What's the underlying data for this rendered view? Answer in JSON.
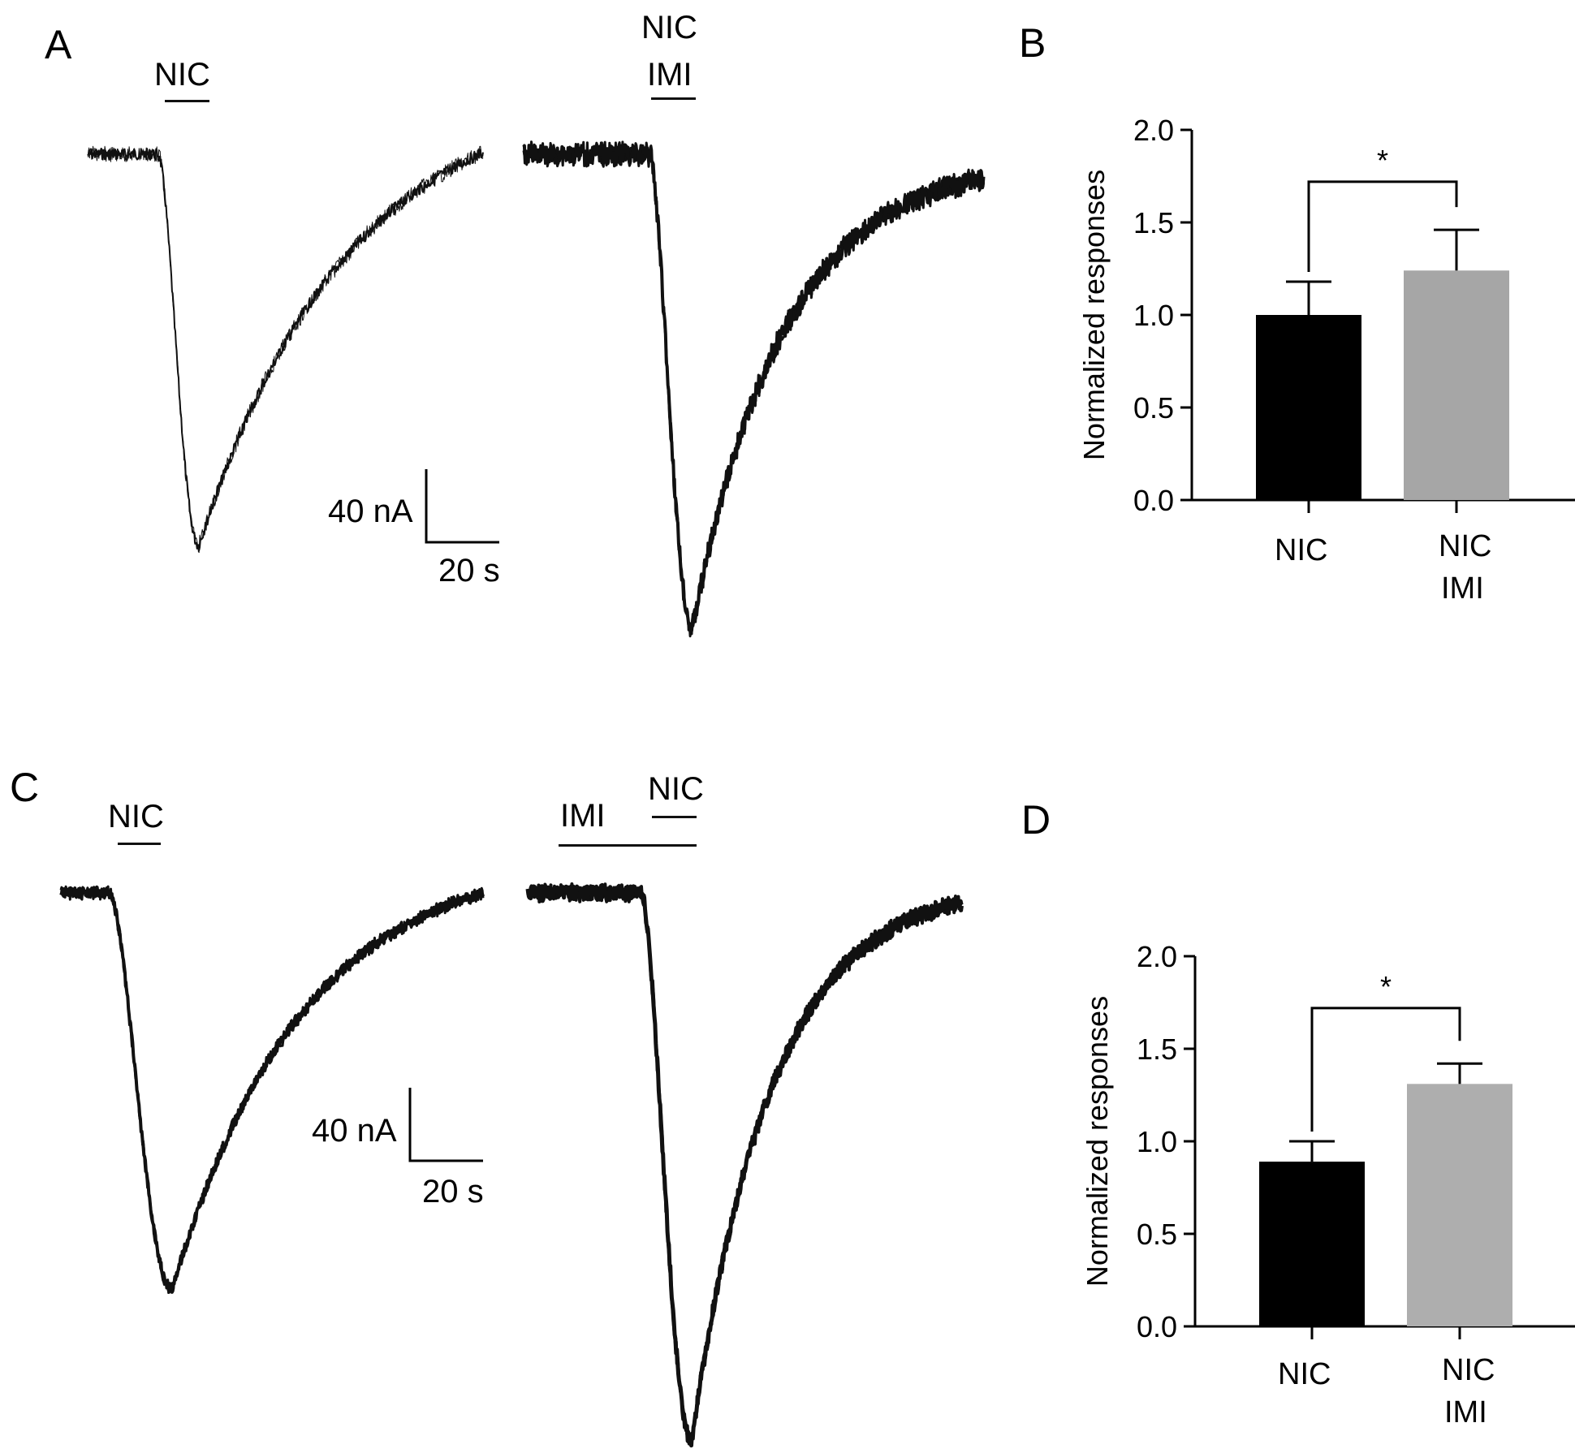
{
  "panels": {
    "a": "A",
    "b": "B",
    "c": "C",
    "d": "D"
  },
  "traces": {
    "a_left_label": "NIC",
    "a_right_label_1": "NIC",
    "a_right_label_2": "IMI",
    "c_left_label": "NIC",
    "c_right_label_imi": "IMI",
    "c_right_label_nic": "NIC"
  },
  "scalebars": {
    "a": {
      "current": "40 nA",
      "time": "20 s"
    },
    "c": {
      "current": "40 nA",
      "time": "20 s"
    }
  },
  "chart_data": [
    {
      "id": "B",
      "type": "bar",
      "categories": [
        "NIC",
        "NIC\nIMI"
      ],
      "category_lines": [
        [
          "NIC"
        ],
        [
          "NIC",
          "IMI"
        ]
      ],
      "values": [
        1.0,
        1.24
      ],
      "errors": [
        0.18,
        0.22
      ],
      "colors": [
        "#000000",
        "#a6a6a6"
      ],
      "ylabel": "Normalized responses",
      "ylim": [
        0.0,
        2.0
      ],
      "yticks": [
        "0.0",
        "0.5",
        "1.0",
        "1.5",
        "2.0"
      ],
      "significance": "*"
    },
    {
      "id": "D",
      "type": "bar",
      "categories": [
        "NIC",
        "NIC\nIMI"
      ],
      "category_lines": [
        [
          "NIC"
        ],
        [
          "NIC",
          "IMI"
        ]
      ],
      "values": [
        0.89,
        1.31
      ],
      "errors": [
        0.11,
        0.11
      ],
      "colors": [
        "#000000",
        "#aeaeae"
      ],
      "ylabel": "Normalized responses",
      "ylim": [
        0.0,
        2.0
      ],
      "yticks": [
        "0.0",
        "0.5",
        "1.0",
        "1.5",
        "2.0"
      ],
      "significance": "*"
    }
  ]
}
